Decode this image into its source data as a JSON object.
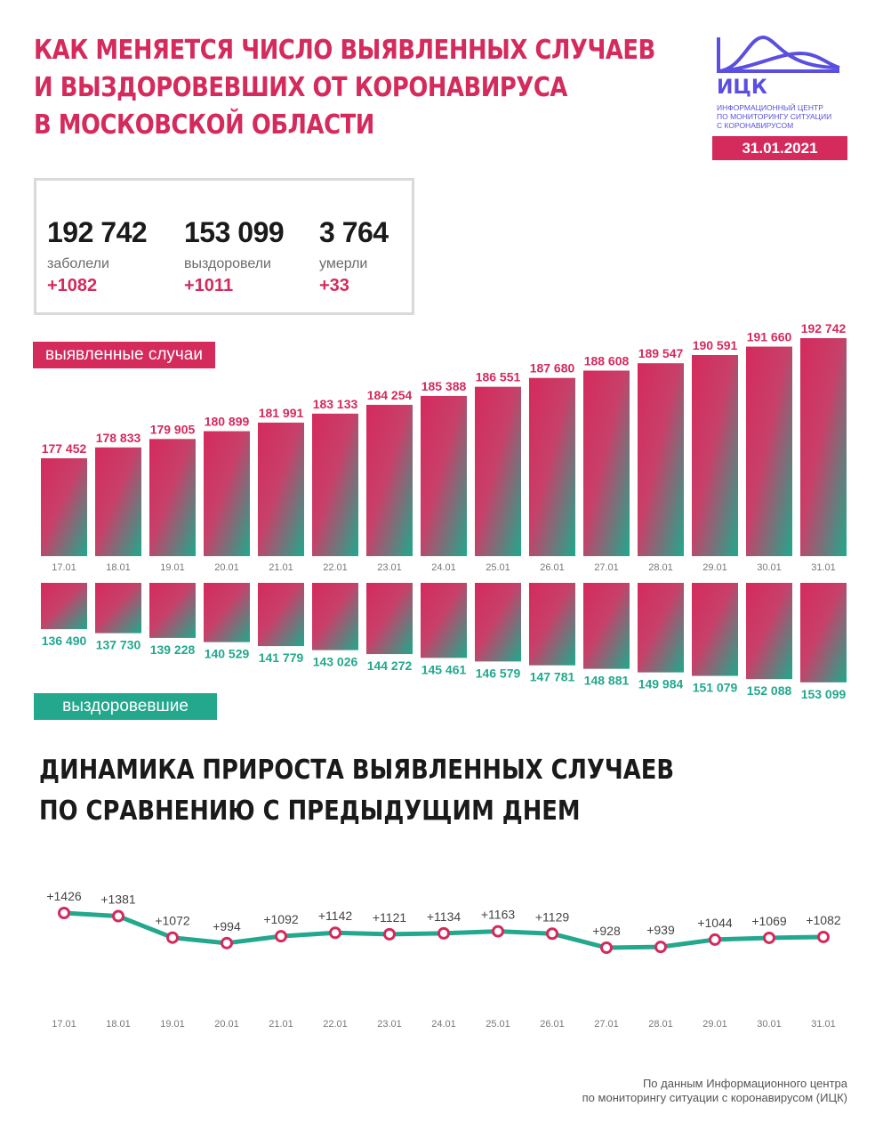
{
  "header": {
    "title_lines": [
      "КАК МЕНЯЕТСЯ ЧИСЛО ВЫЯВЛЕННЫХ СЛУЧАЕВ",
      "И ВЫЗДОРОВЕВШИХ ОТ КОРОНАВИРУСА",
      "В МОСКОВСКОЙ ОБЛАСТИ"
    ],
    "logo_abbr": "ИЦК",
    "logo_lines": [
      "ИНФОРМАЦИОННЫЙ ЦЕНТР",
      "ПО МОНИТОРИНГУ СИТУАЦИИ",
      "С КОРОНАВИРУСОМ"
    ],
    "date": "31.01.2021"
  },
  "stats": [
    {
      "value": "192 742",
      "label": "заболели",
      "delta": "+1082"
    },
    {
      "value": "153 099",
      "label": "выздоровели",
      "delta": "+1011"
    },
    {
      "value": "3 764",
      "label": "умерли",
      "delta": "+33"
    }
  ],
  "labels": {
    "cases": "выявленные случаи",
    "recovered": "выздоровевшие"
  },
  "section_title_lines": [
    "ДИНАМИКА ПРИРОСТА ВЫЯВЛЕННЫХ СЛУЧАЕВ",
    "ПО СРАВНЕНИЮ С ПРЕДЫДУЩИМ ДНЕМ"
  ],
  "source_lines": [
    "По данным Информационного центра",
    "по мониторингу ситуации с коронавирусом (ИЦК)"
  ],
  "colors": {
    "pink": "#d42a5c",
    "green": "#23a88e",
    "grey": "#d9d9d9",
    "purple": "#5a4fe0"
  },
  "chart_data": [
    {
      "type": "bar",
      "categories": [
        "17.01",
        "18.01",
        "19.01",
        "20.01",
        "21.01",
        "22.01",
        "23.01",
        "24.01",
        "25.01",
        "26.01",
        "27.01",
        "28.01",
        "29.01",
        "30.01",
        "31.01"
      ],
      "series": [
        {
          "name": "выявленные случаи",
          "values": [
            177452,
            178833,
            179905,
            180899,
            181991,
            183133,
            184254,
            185388,
            186551,
            187680,
            188608,
            189547,
            190591,
            191660,
            192742
          ],
          "labels": [
            "177 452",
            "178 833",
            "179 905",
            "180 899",
            "181 991",
            "183 133",
            "184 254",
            "185 388",
            "186 551",
            "187 680",
            "188 608",
            "189 547",
            "190 591",
            "191 660",
            "192 742"
          ]
        },
        {
          "name": "выздоровевшие",
          "values": [
            136490,
            137730,
            139228,
            140529,
            141779,
            143026,
            144272,
            145461,
            146579,
            147781,
            148881,
            149984,
            151079,
            152088,
            153099
          ],
          "labels": [
            "136 490",
            "137 730",
            "139 228",
            "140 529",
            "141 779",
            "143 026",
            "144 272",
            "145 461",
            "146 579",
            "147 781",
            "148 881",
            "149 984",
            "151 079",
            "152 088",
            "153 099"
          ]
        }
      ]
    },
    {
      "type": "line",
      "categories": [
        "17.01",
        "18.01",
        "19.01",
        "20.01",
        "21.01",
        "22.01",
        "23.01",
        "24.01",
        "25.01",
        "26.01",
        "27.01",
        "28.01",
        "29.01",
        "30.01",
        "31.01"
      ],
      "values": [
        1426,
        1381,
        1072,
        994,
        1092,
        1142,
        1121,
        1134,
        1163,
        1129,
        928,
        939,
        1044,
        1069,
        1082
      ],
      "labels": [
        "+1426",
        "+1381",
        "+1072",
        "+994",
        "+1092",
        "+1142",
        "+1121",
        "+1134",
        "+1163",
        "+1129",
        "+928",
        "+939",
        "+1044",
        "+1069",
        "+1082"
      ]
    }
  ]
}
